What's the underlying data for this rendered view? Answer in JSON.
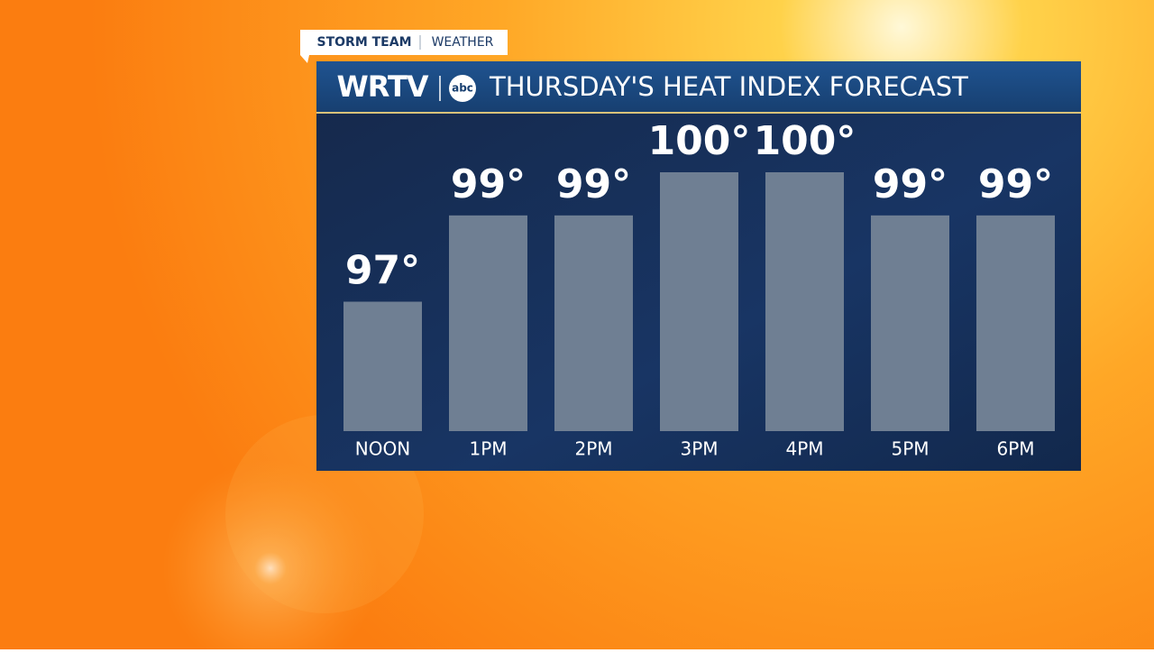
{
  "header": {
    "tag": "STORM TEAM",
    "section": "WEATHER",
    "station": "WRTV",
    "network": "abc"
  },
  "chart_data": {
    "type": "bar",
    "title": "THURSDAY'S HEAT INDEX FORECAST",
    "categories": [
      "NOON",
      "1PM",
      "2PM",
      "3PM",
      "4PM",
      "5PM",
      "6PM"
    ],
    "values": [
      97,
      99,
      99,
      100,
      100,
      99,
      99
    ],
    "value_labels": [
      "97°",
      "99°",
      "99°",
      "100°",
      "100°",
      "99°",
      "99°"
    ],
    "color": "#6f7f93",
    "ylim": [
      94,
      100
    ]
  }
}
